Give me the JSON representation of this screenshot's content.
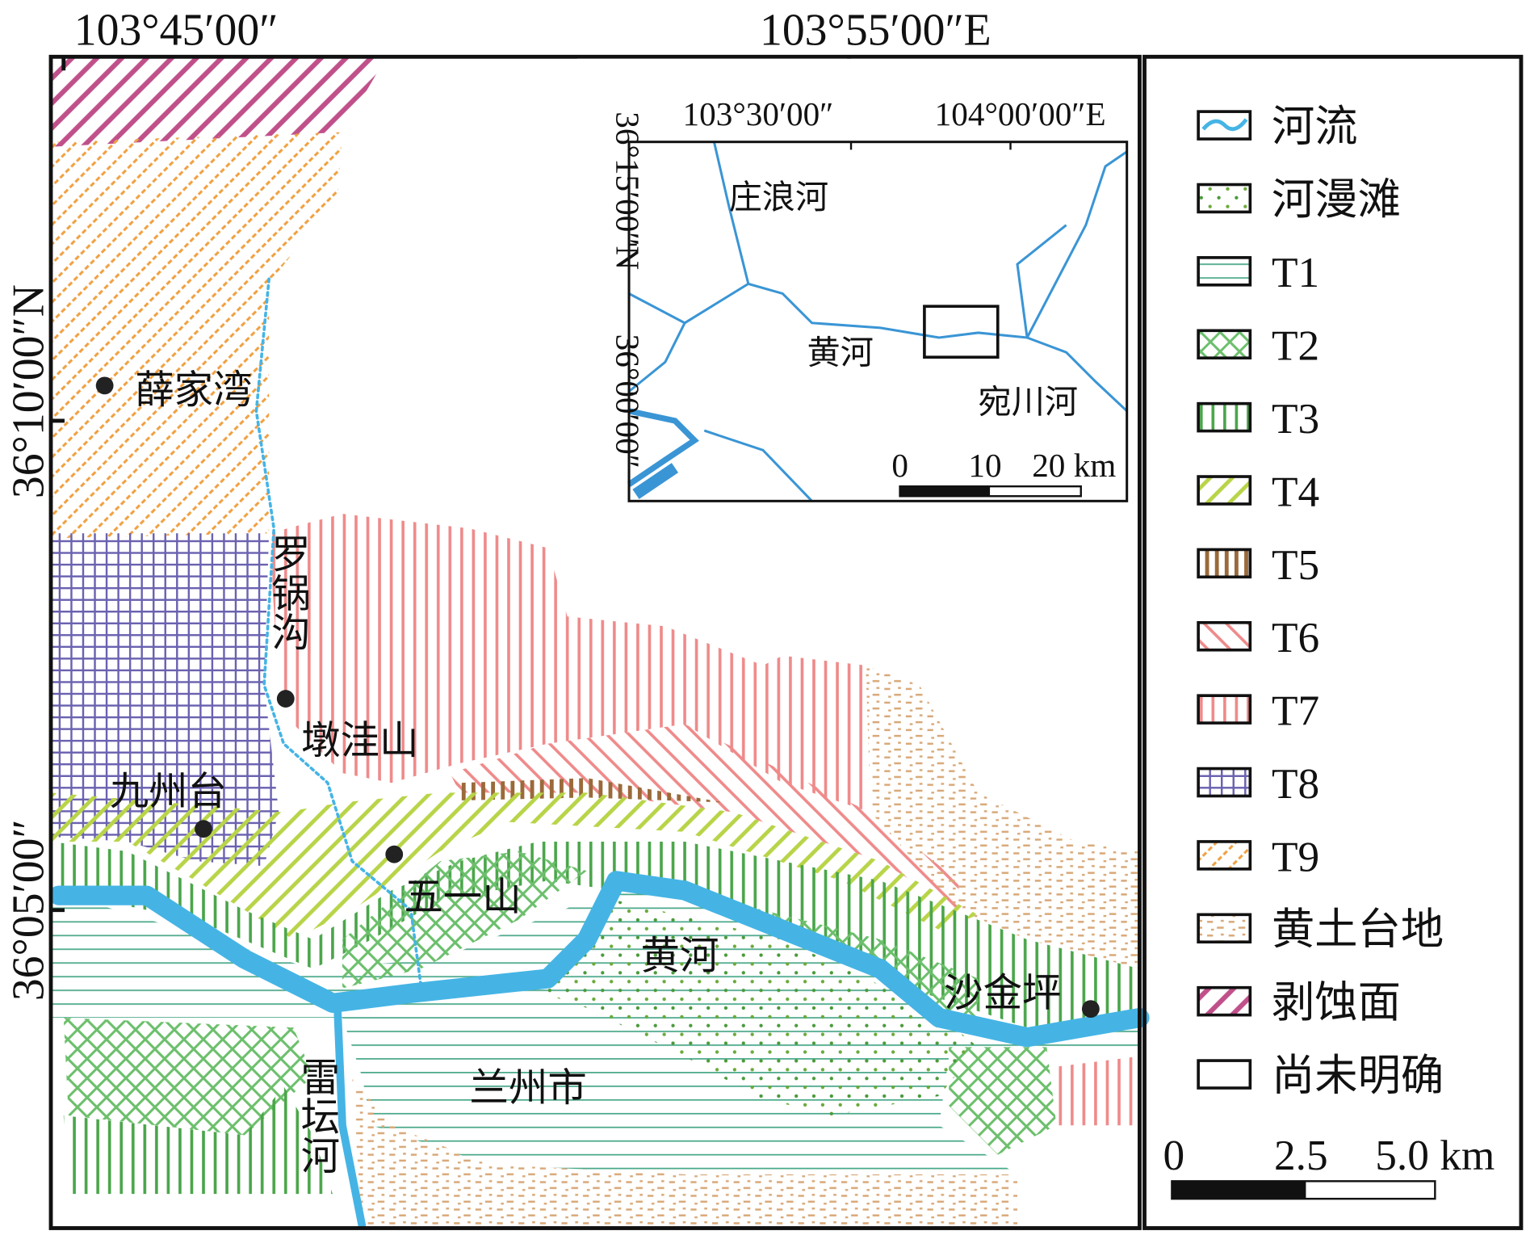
{
  "map": {
    "lon_labels": [
      "103°45′00″",
      "103°55′00″E"
    ],
    "lat_labels": [
      "36°10′00″N",
      "36°05′00″"
    ],
    "places": [
      "薛家湾",
      "罗锅沟",
      "墩洼山",
      "九州台",
      "五一山",
      "黄河",
      "沙金坪",
      "兰州市",
      "雷坛河"
    ],
    "inset": {
      "lon_labels": [
        "103°30′00″",
        "104°00′00″E"
      ],
      "lat_labels": [
        "36°15′00″N",
        "36°00′00″"
      ],
      "places": [
        "庄浪河",
        "黄河",
        "宛川河"
      ],
      "scale": [
        "0",
        "10",
        "20 km"
      ]
    },
    "legend": [
      "河流",
      "河漫滩",
      "T1",
      "T2",
      "T3",
      "T4",
      "T5",
      "T6",
      "T7",
      "T8",
      "T9",
      "黄土台地",
      "剥蚀面",
      "尚未明确"
    ],
    "scale": [
      "0",
      "2.5",
      "5.0 km"
    ]
  }
}
